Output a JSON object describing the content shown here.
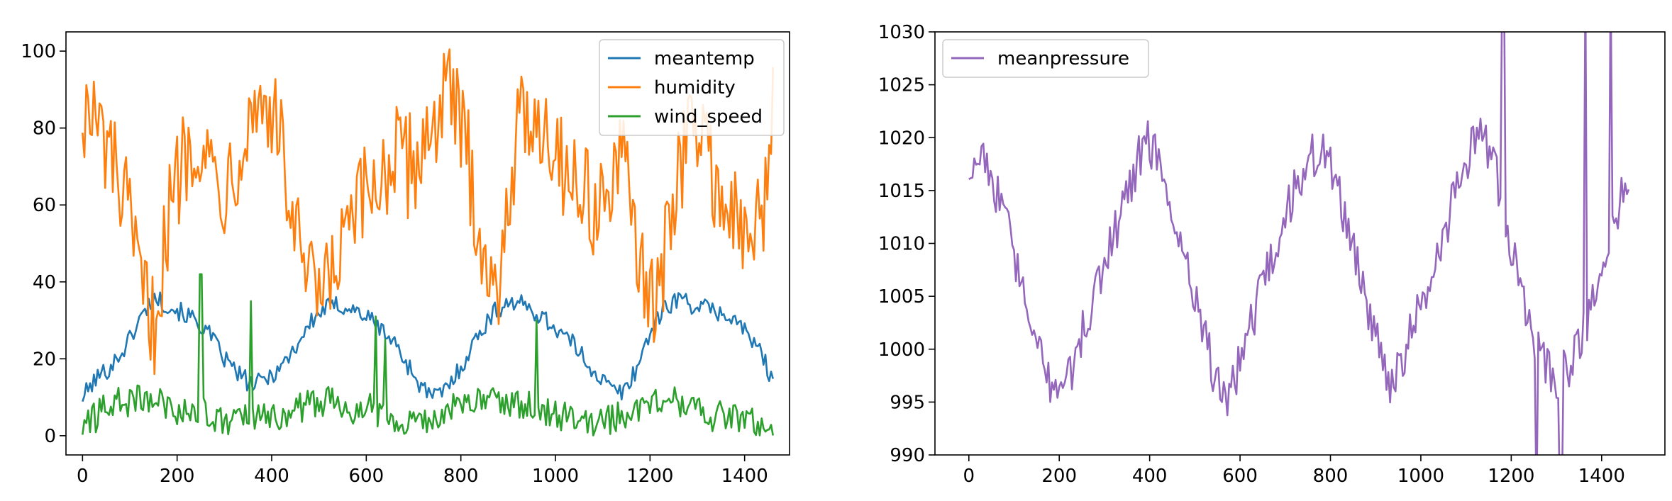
{
  "chart_data": [
    {
      "type": "line",
      "title": "",
      "xlabel": "",
      "ylabel": "",
      "xlim": [
        -35,
        1495
      ],
      "ylim": [
        -5,
        105
      ],
      "x_ticks": [
        0,
        200,
        400,
        600,
        800,
        1000,
        1200,
        1400
      ],
      "y_ticks": [
        0,
        20,
        40,
        60,
        80,
        100
      ],
      "legend_position": "top-right",
      "grid": false,
      "series": [
        {
          "name": "meantemp",
          "color": "#1f77b4",
          "x": [
            0,
            30,
            60,
            90,
            120,
            150,
            180,
            210,
            240,
            270,
            300,
            330,
            360,
            390,
            420,
            450,
            480,
            510,
            540,
            570,
            600,
            630,
            660,
            690,
            720,
            750,
            780,
            810,
            840,
            870,
            900,
            930,
            960,
            990,
            1020,
            1050,
            1080,
            1110,
            1140,
            1170,
            1200,
            1230,
            1260,
            1290,
            1320,
            1350,
            1380,
            1410,
            1440,
            1461
          ],
          "values": [
            10,
            15,
            18,
            23,
            30,
            36,
            34,
            32,
            30,
            26,
            20,
            16,
            13,
            15,
            18,
            23,
            29,
            33,
            34,
            33,
            31,
            28,
            24,
            18,
            12,
            10,
            14,
            20,
            27,
            32,
            35,
            34,
            32,
            29,
            26,
            22,
            17,
            13,
            11,
            17,
            27,
            33,
            36,
            34,
            33,
            32,
            30,
            26,
            20,
            14
          ]
        },
        {
          "name": "humidity",
          "color": "#ff7f0e",
          "x": [
            0,
            30,
            60,
            90,
            120,
            150,
            180,
            210,
            240,
            270,
            300,
            330,
            360,
            390,
            420,
            450,
            480,
            510,
            540,
            570,
            600,
            630,
            660,
            690,
            720,
            750,
            780,
            810,
            840,
            870,
            900,
            930,
            960,
            990,
            1020,
            1050,
            1080,
            1110,
            1140,
            1170,
            1200,
            1230,
            1260,
            1290,
            1320,
            1350,
            1380,
            1410,
            1440,
            1461
          ],
          "values": [
            85,
            80,
            72,
            60,
            40,
            28,
            55,
            72,
            80,
            70,
            65,
            75,
            85,
            88,
            75,
            52,
            38,
            35,
            45,
            55,
            62,
            68,
            72,
            70,
            75,
            85,
            88,
            75,
            55,
            32,
            65,
            82,
            85,
            78,
            70,
            65,
            60,
            62,
            70,
            55,
            30,
            45,
            70,
            82,
            75,
            62,
            55,
            50,
            58,
            88
          ]
        },
        {
          "name": "wind_speed",
          "color": "#2ca02c",
          "x": [
            0,
            30,
            60,
            90,
            120,
            150,
            180,
            210,
            240,
            270,
            300,
            330,
            360,
            390,
            420,
            450,
            480,
            510,
            540,
            570,
            600,
            630,
            660,
            690,
            720,
            750,
            780,
            810,
            840,
            870,
            900,
            930,
            960,
            990,
            1020,
            1050,
            1080,
            1110,
            1140,
            1170,
            1200,
            1230,
            1260,
            1290,
            1320,
            1350,
            1380,
            1410,
            1440,
            1461
          ],
          "values": [
            2,
            5,
            9,
            8,
            10,
            9,
            8,
            6,
            7,
            5,
            3,
            4,
            5,
            4,
            5,
            7,
            8,
            9,
            9,
            7,
            8,
            6,
            5,
            4,
            3,
            5,
            7,
            8,
            9,
            10,
            9,
            8,
            8,
            6,
            5,
            4,
            3,
            4,
            5,
            7,
            9,
            10,
            9,
            7,
            5,
            5,
            4,
            4,
            3,
            2
          ],
          "spikes": [
            {
              "x": 250,
              "y": 42
            },
            {
              "x": 355,
              "y": 35
            },
            {
              "x": 620,
              "y": 31
            },
            {
              "x": 640,
              "y": 25
            },
            {
              "x": 960,
              "y": 30
            }
          ]
        }
      ]
    },
    {
      "type": "line",
      "title": "",
      "xlabel": "",
      "ylabel": "",
      "xlim": [
        -75,
        1540
      ],
      "ylim": [
        990,
        1030
      ],
      "x_ticks": [
        0,
        200,
        400,
        600,
        800,
        1000,
        1200,
        1400
      ],
      "y_ticks": [
        990,
        995,
        1000,
        1005,
        1010,
        1015,
        1020,
        1025,
        1030
      ],
      "legend_position": "top-left",
      "grid": false,
      "series": [
        {
          "name": "meanpressure",
          "color": "#9467bd",
          "x": [
            0,
            30,
            60,
            90,
            120,
            150,
            180,
            210,
            240,
            270,
            300,
            330,
            360,
            390,
            420,
            450,
            480,
            510,
            540,
            570,
            600,
            630,
            660,
            690,
            720,
            750,
            780,
            810,
            840,
            870,
            900,
            930,
            960,
            990,
            1020,
            1050,
            1080,
            1110,
            1140,
            1170,
            1200,
            1230,
            1260,
            1290,
            1320,
            1350,
            1380,
            1410,
            1440,
            1461
          ],
          "values": [
            1017,
            1019,
            1015,
            1011,
            1005,
            1000,
            997,
            996,
            1000,
            1004,
            1008,
            1012,
            1016,
            1020,
            1018,
            1013,
            1008,
            1004,
            998,
            995,
            999,
            1003,
            1007,
            1011,
            1015,
            1018,
            1019,
            1016,
            1011,
            1006,
            1001,
            997,
            999,
            1003,
            1007,
            1011,
            1015,
            1019,
            1020,
            1016,
            1010,
            1004,
            1000,
            997,
            998,
            1000,
            1004,
            1009,
            1014,
            1016
          ],
          "spikes": [
            {
              "x": 1182,
              "y": 1035
            },
            {
              "x": 1255,
              "y": 985
            },
            {
              "x": 1310,
              "y": 985
            },
            {
              "x": 1365,
              "y": 1035
            },
            {
              "x": 1420,
              "y": 1035
            }
          ]
        }
      ]
    }
  ]
}
